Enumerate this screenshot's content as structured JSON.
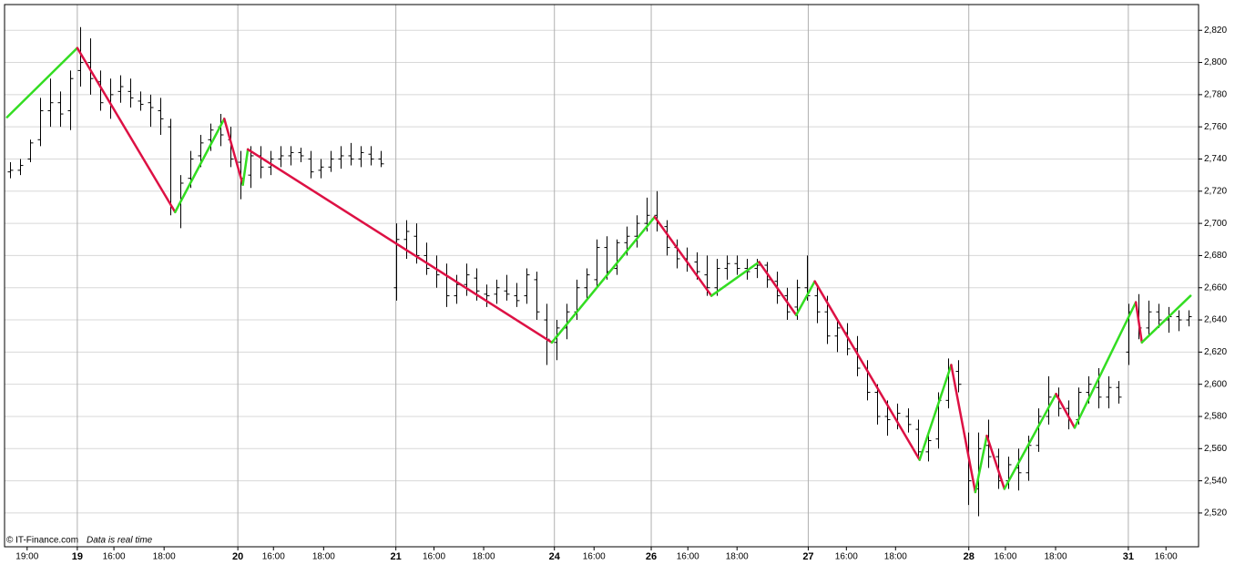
{
  "chart_data": {
    "type": "ohlc",
    "credit": "© IT-Finance.com",
    "note": "Data is real time",
    "xlim": [
      0,
      238
    ],
    "xticks": [
      {
        "value": 4.5,
        "label": "19:00"
      },
      {
        "value": 14.5,
        "label": "19",
        "major": true
      },
      {
        "value": 21.8,
        "label": "16:00"
      },
      {
        "value": 31.8,
        "label": "18:00"
      },
      {
        "value": 46.5,
        "label": "20",
        "major": true
      },
      {
        "value": 53.6,
        "label": "16:00"
      },
      {
        "value": 63.6,
        "label": "18:00"
      },
      {
        "value": 78,
        "label": "21",
        "major": true
      },
      {
        "value": 85.6,
        "label": "16:00"
      },
      {
        "value": 95.5,
        "label": "18:00"
      },
      {
        "value": 109.6,
        "label": "24",
        "major": true
      },
      {
        "value": 117.5,
        "label": "16:00"
      },
      {
        "value": 128.9,
        "label": "26",
        "major": true
      },
      {
        "value": 136.2,
        "label": "16:00"
      },
      {
        "value": 146,
        "label": "18:00"
      },
      {
        "value": 160.2,
        "label": "27",
        "major": true
      },
      {
        "value": 167.8,
        "label": "16:00"
      },
      {
        "value": 177.6,
        "label": "18:00"
      },
      {
        "value": 192.2,
        "label": "28",
        "major": true
      },
      {
        "value": 199.5,
        "label": "16:00"
      },
      {
        "value": 209.5,
        "label": "18:00"
      },
      {
        "value": 224,
        "label": "31",
        "major": true
      },
      {
        "value": 231.5,
        "label": "16:00"
      }
    ],
    "ylim": [
      2499,
      2836
    ],
    "yticks": [
      {
        "value": 2520,
        "label": "2,520"
      },
      {
        "value": 2540,
        "label": "2,540"
      },
      {
        "value": 2560,
        "label": "2,560"
      },
      {
        "value": 2580,
        "label": "2,580"
      },
      {
        "value": 2600,
        "label": "2,600"
      },
      {
        "value": 2620,
        "label": "2,620"
      },
      {
        "value": 2640,
        "label": "2,640"
      },
      {
        "value": 2660,
        "label": "2,660"
      },
      {
        "value": 2680,
        "label": "2,680"
      },
      {
        "value": 2700,
        "label": "2,700"
      },
      {
        "value": 2720,
        "label": "2,720"
      },
      {
        "value": 2740,
        "label": "2,740"
      },
      {
        "value": 2760,
        "label": "2,760"
      },
      {
        "value": 2780,
        "label": "2,780"
      },
      {
        "value": 2800,
        "label": "2,800"
      },
      {
        "value": 2820,
        "label": "2,820"
      }
    ],
    "grid": true,
    "bar_color": "#000000",
    "ohlc": {
      "x": [
        1,
        3,
        5,
        7,
        9,
        11,
        13,
        15,
        17,
        19,
        21,
        23,
        25,
        27,
        29,
        31,
        33,
        35,
        37,
        39,
        41,
        43,
        45,
        47,
        49,
        51,
        53,
        55,
        57,
        59,
        61,
        63,
        65,
        67,
        69,
        71,
        73,
        75,
        78,
        80,
        82,
        84,
        86,
        88,
        90,
        92,
        94,
        96,
        98,
        100,
        102,
        104,
        106,
        108,
        110,
        112,
        114,
        116,
        118,
        120,
        122,
        124,
        126,
        128,
        130,
        132,
        134,
        136,
        138,
        140,
        142,
        144,
        146,
        148,
        150,
        152,
        154,
        156,
        158,
        160,
        162,
        164,
        166,
        168,
        170,
        172,
        174,
        176,
        178,
        180,
        182,
        184,
        186,
        188,
        190,
        192,
        194,
        196,
        198,
        200,
        202,
        204,
        206,
        208,
        210,
        212,
        214,
        216,
        218,
        220,
        222,
        224,
        226,
        228,
        230,
        232,
        234,
        236
      ],
      "open": [
        2732,
        2733,
        2740,
        2752,
        2770,
        2775,
        2770,
        2795,
        2800,
        2788,
        2776,
        2782,
        2782,
        2776,
        2775,
        2770,
        2760,
        2712,
        2728,
        2742,
        2752,
        2760,
        2752,
        2738,
        2730,
        2742,
        2735,
        2740,
        2742,
        2744,
        2740,
        2733,
        2735,
        2740,
        2742,
        2740,
        2743,
        2740,
        2660,
        2690,
        2692,
        2680,
        2672,
        2668,
        2655,
        2662,
        2666,
        2656,
        2656,
        2658,
        2655,
        2655,
        2665,
        2640,
        2626,
        2635,
        2645,
        2660,
        2665,
        2685,
        2672,
        2688,
        2692,
        2700,
        2705,
        2698,
        2685,
        2678,
        2676,
        2668,
        2660,
        2672,
        2675,
        2672,
        2672,
        2674,
        2664,
        2655,
        2648,
        2660,
        2655,
        2645,
        2630,
        2632,
        2622,
        2610,
        2595,
        2580,
        2578,
        2580,
        2572,
        2558,
        2566,
        2590,
        2608,
        2560,
        2535,
        2562,
        2555,
        2540,
        2548,
        2545,
        2562,
        2580,
        2592,
        2585,
        2578,
        2595,
        2598,
        2592,
        2598,
        2620,
        2645,
        2635,
        2645,
        2640,
        2642,
        2640
      ],
      "high": [
        2738,
        2740,
        2752,
        2778,
        2790,
        2782,
        2795,
        2822,
        2815,
        2795,
        2790,
        2792,
        2790,
        2782,
        2780,
        2778,
        2765,
        2730,
        2745,
        2755,
        2762,
        2768,
        2760,
        2745,
        2748,
        2748,
        2745,
        2748,
        2748,
        2747,
        2745,
        2740,
        2745,
        2748,
        2750,
        2748,
        2748,
        2745,
        2700,
        2702,
        2700,
        2688,
        2680,
        2675,
        2668,
        2675,
        2672,
        2662,
        2665,
        2668,
        2663,
        2672,
        2670,
        2650,
        2640,
        2650,
        2665,
        2672,
        2690,
        2692,
        2690,
        2698,
        2705,
        2716,
        2720,
        2702,
        2690,
        2685,
        2682,
        2680,
        2678,
        2680,
        2680,
        2678,
        2678,
        2676,
        2670,
        2660,
        2665,
        2680,
        2662,
        2655,
        2640,
        2638,
        2630,
        2615,
        2600,
        2590,
        2588,
        2585,
        2578,
        2570,
        2595,
        2616,
        2615,
        2570,
        2570,
        2578,
        2560,
        2555,
        2560,
        2568,
        2585,
        2605,
        2598,
        2590,
        2598,
        2605,
        2610,
        2605,
        2602,
        2650,
        2656,
        2652,
        2650,
        2648,
        2646,
        2646
      ],
      "low": [
        2728,
        2730,
        2738,
        2748,
        2760,
        2760,
        2758,
        2785,
        2780,
        2770,
        2765,
        2775,
        2772,
        2770,
        2760,
        2755,
        2705,
        2697,
        2722,
        2735,
        2745,
        2748,
        2735,
        2715,
        2722,
        2728,
        2730,
        2735,
        2736,
        2738,
        2728,
        2728,
        2732,
        2734,
        2736,
        2735,
        2736,
        2735,
        2652,
        2678,
        2675,
        2668,
        2660,
        2648,
        2650,
        2655,
        2652,
        2648,
        2650,
        2652,
        2648,
        2650,
        2640,
        2612,
        2615,
        2628,
        2640,
        2652,
        2660,
        2665,
        2668,
        2680,
        2685,
        2695,
        2695,
        2680,
        2672,
        2670,
        2665,
        2655,
        2655,
        2665,
        2668,
        2665,
        2666,
        2660,
        2650,
        2640,
        2640,
        2652,
        2638,
        2625,
        2620,
        2618,
        2605,
        2590,
        2575,
        2568,
        2572,
        2570,
        2555,
        2552,
        2560,
        2585,
        2595,
        2525,
        2518,
        2548,
        2535,
        2535,
        2534,
        2540,
        2558,
        2575,
        2580,
        2572,
        2575,
        2588,
        2585,
        2585,
        2588,
        2612,
        2628,
        2630,
        2635,
        2632,
        2633,
        2636
      ],
      "close": [
        2733,
        2736,
        2750,
        2770,
        2775,
        2768,
        2790,
        2800,
        2790,
        2775,
        2780,
        2785,
        2778,
        2774,
        2772,
        2765,
        2710,
        2725,
        2740,
        2750,
        2758,
        2755,
        2740,
        2728,
        2742,
        2735,
        2740,
        2742,
        2744,
        2742,
        2732,
        2735,
        2740,
        2742,
        2740,
        2744,
        2740,
        2737,
        2690,
        2695,
        2680,
        2672,
        2668,
        2655,
        2662,
        2668,
        2658,
        2655,
        2660,
        2656,
        2652,
        2668,
        2645,
        2628,
        2635,
        2645,
        2660,
        2668,
        2685,
        2670,
        2688,
        2692,
        2700,
        2705,
        2700,
        2685,
        2678,
        2675,
        2670,
        2660,
        2672,
        2675,
        2672,
        2670,
        2674,
        2665,
        2655,
        2645,
        2660,
        2655,
        2645,
        2630,
        2635,
        2622,
        2610,
        2595,
        2580,
        2578,
        2582,
        2575,
        2558,
        2565,
        2590,
        2610,
        2600,
        2540,
        2560,
        2555,
        2540,
        2550,
        2545,
        2562,
        2580,
        2592,
        2585,
        2578,
        2595,
        2600,
        2592,
        2598,
        2592,
        2645,
        2635,
        2645,
        2640,
        2642,
        2640,
        2642
      ]
    },
    "zigzag": {
      "up_color": "#33dd22",
      "down_color": "#dd1144",
      "x": [
        0.5,
        14.5,
        34,
        43.8,
        47.5,
        48.5,
        109.1,
        129.6,
        140.9,
        150.4,
        157.8,
        161.5,
        182.4,
        188.7,
        193.5,
        195.8,
        199.3,
        209.6,
        213.3,
        225.5,
        226.7,
        236.4
      ],
      "values": [
        2766,
        2809,
        2707,
        2765,
        2724,
        2746,
        2626,
        2704,
        2655,
        2676,
        2643,
        2664,
        2553,
        2612,
        2533,
        2568,
        2535,
        2594,
        2573,
        2651,
        2626,
        2655
      ]
    }
  }
}
